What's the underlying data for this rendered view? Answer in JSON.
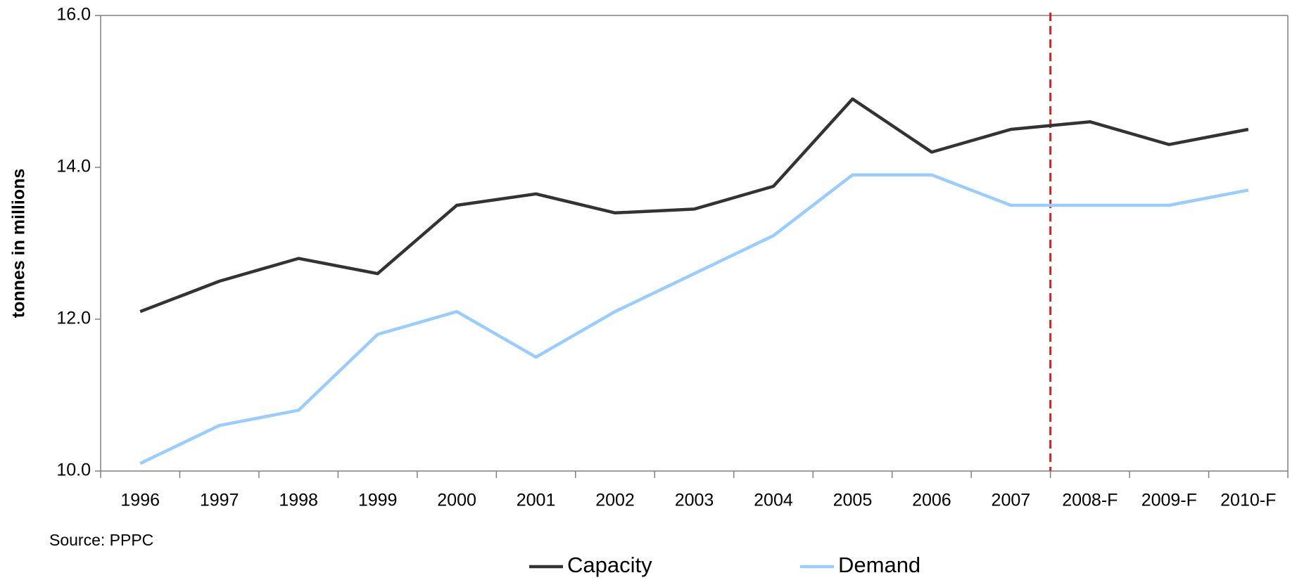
{
  "chart_data": {
    "type": "line",
    "y_label": "tonnes in millions",
    "source": "Source:  PPPC",
    "categories": [
      "1996",
      "1997",
      "1998",
      "1999",
      "2000",
      "2001",
      "2002",
      "2003",
      "2004",
      "2005",
      "2006",
      "2007",
      "2008-F",
      "2009-F",
      "2010-F"
    ],
    "series": [
      {
        "name": "Capacity",
        "color": "#333333",
        "values": [
          12.1,
          12.5,
          12.8,
          12.6,
          13.5,
          13.65,
          13.4,
          13.45,
          13.75,
          14.9,
          14.2,
          14.5,
          14.6,
          14.3,
          14.5
        ]
      },
      {
        "name": "Demand",
        "color": "#99ccff",
        "values": [
          10.1,
          10.6,
          10.8,
          11.8,
          12.1,
          11.5,
          12.1,
          12.6,
          13.1,
          13.9,
          13.9,
          13.5,
          13.5,
          13.5,
          13.7
        ]
      }
    ],
    "ylim": [
      10,
      16
    ],
    "yticks": [
      {
        "value": 10,
        "label": "10.0"
      },
      {
        "value": 12,
        "label": "12.0"
      },
      {
        "value": 14,
        "label": "14.0"
      },
      {
        "value": 16,
        "label": "16.0"
      }
    ],
    "grid": false,
    "legend": "bottom"
  }
}
